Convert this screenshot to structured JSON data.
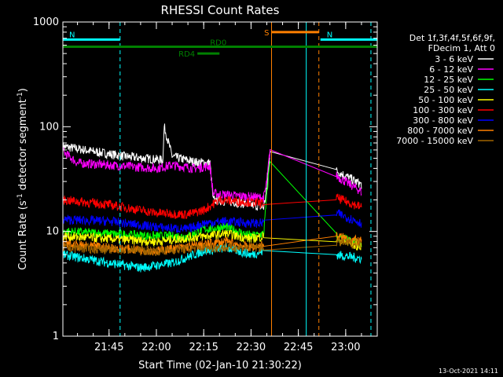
{
  "chart_data": {
    "type": "line",
    "title": "RHESSI Count Rates",
    "xlabel": "Start Time (02-Jan-10 21:30:22)",
    "ylabel_main": "Count Rate (s",
    "ylabel_sup1": "-1",
    "ylabel_mid": " detector segment",
    "ylabel_sup2": "-1",
    "ylabel_end": ")",
    "y_scale": "log",
    "xlim": [
      "21:30:22",
      "23:10:00"
    ],
    "ylim": [
      1,
      1000
    ],
    "x_ticks": [
      "21:45",
      "22:00",
      "22:15",
      "22:30",
      "22:45",
      "23:00"
    ],
    "y_ticks": [
      "1",
      "10",
      "100",
      "1000"
    ],
    "legend_position": "right",
    "legend_header": [
      "Det 1f,3f,4f,5f,6f,9f,",
      "FDecim 1, Att 0"
    ],
    "timestamp": "13-Oct-2021 14:11",
    "flags": [
      {
        "label": "N",
        "color": "#00ffff",
        "start": "21:30:22",
        "end": "21:48:30",
        "level": 680
      },
      {
        "label": "N",
        "color": "#00ffff",
        "start": "22:52:00",
        "end": "23:10:00",
        "level": 680
      },
      {
        "label": "S",
        "color": "#ff8000",
        "start": "22:36:30",
        "end": "22:51:30",
        "level": 800
      },
      {
        "label": "RD0",
        "color": "#008000",
        "start": "21:30:22",
        "end": "23:10:00",
        "level": 580
      },
      {
        "label": "RD4",
        "color": "#008000",
        "start": "22:13:00",
        "end": "22:20:00",
        "level": 500
      }
    ],
    "vertical_markers": [
      {
        "time": "21:48:30",
        "color": "#00ffff",
        "style": "dashed"
      },
      {
        "time": "22:36:30",
        "color": "#ff8000",
        "style": "solid"
      },
      {
        "time": "22:47:30",
        "color": "#00ffff",
        "style": "solid"
      },
      {
        "time": "22:51:30",
        "color": "#ff8000",
        "style": "dashed"
      },
      {
        "time": "23:08:00",
        "color": "#00ffff",
        "style": "dashed"
      }
    ],
    "series": [
      {
        "name": "3 - 6 keV",
        "color": "#ffffff",
        "points": [
          [
            "21:30:22",
            65
          ],
          [
            "21:40",
            58
          ],
          [
            "21:50",
            52
          ],
          [
            "22:02",
            48
          ],
          [
            "22:02:30",
            100
          ],
          [
            "22:05",
            52
          ],
          [
            "22:12",
            46
          ],
          [
            "22:17",
            45
          ],
          [
            "22:18",
            20
          ],
          [
            "22:25",
            19
          ],
          [
            "22:30",
            18
          ],
          [
            "22:34",
            17
          ],
          [
            "22:35",
            25
          ],
          [
            "22:36",
            60
          ],
          [
            "22:57",
            38
          ],
          [
            "23:05",
            28
          ]
        ]
      },
      {
        "name": "6 - 12 keV",
        "color": "#ff00ff",
        "points": [
          [
            "21:30:22",
            58
          ],
          [
            "21:35",
            45
          ],
          [
            "21:50",
            42
          ],
          [
            "22:00",
            40
          ],
          [
            "22:05",
            43
          ],
          [
            "22:12",
            40
          ],
          [
            "22:17",
            42
          ],
          [
            "22:18",
            23
          ],
          [
            "22:25",
            22
          ],
          [
            "22:34",
            21
          ],
          [
            "22:35",
            30
          ],
          [
            "22:36",
            60
          ],
          [
            "22:57",
            34
          ],
          [
            "23:05",
            24
          ]
        ]
      },
      {
        "name": "12 - 25 keV",
        "color": "#00ff00",
        "points": [
          [
            "21:30:22",
            10
          ],
          [
            "21:45",
            9.5
          ],
          [
            "22:00",
            9
          ],
          [
            "22:10",
            9
          ],
          [
            "22:15",
            10.5
          ],
          [
            "22:22",
            11
          ],
          [
            "22:30",
            9
          ],
          [
            "22:34",
            9.5
          ],
          [
            "22:36",
            50
          ],
          [
            "22:57",
            9
          ],
          [
            "23:05",
            7.5
          ]
        ]
      },
      {
        "name": "25 - 50 keV",
        "color": "#00ffff",
        "points": [
          [
            "21:30:22",
            6
          ],
          [
            "21:45",
            5
          ],
          [
            "21:55",
            4.5
          ],
          [
            "22:05",
            5
          ],
          [
            "22:15",
            6.5
          ],
          [
            "22:22",
            7
          ],
          [
            "22:30",
            6
          ],
          [
            "22:34",
            6.5
          ],
          [
            "22:57",
            6
          ],
          [
            "23:05",
            5.5
          ]
        ]
      },
      {
        "name": "50 - 100 keV",
        "color": "#ffff00",
        "points": [
          [
            "21:30:22",
            9
          ],
          [
            "21:45",
            8.5
          ],
          [
            "22:00",
            8
          ],
          [
            "22:15",
            9
          ],
          [
            "22:22",
            9.5
          ],
          [
            "22:30",
            8.5
          ],
          [
            "22:34",
            9
          ],
          [
            "22:57",
            8.5
          ],
          [
            "23:05",
            7
          ]
        ]
      },
      {
        "name": "100 - 300 keV",
        "color": "#ff0000",
        "points": [
          [
            "21:30:22",
            20
          ],
          [
            "21:45",
            18
          ],
          [
            "22:00",
            15
          ],
          [
            "22:10",
            14.5
          ],
          [
            "22:15",
            16
          ],
          [
            "22:20",
            20
          ],
          [
            "22:30",
            19
          ],
          [
            "22:34",
            18.5
          ],
          [
            "22:57",
            21
          ],
          [
            "23:05",
            17
          ]
        ]
      },
      {
        "name": "300 - 800 keV",
        "color": "#0000ff",
        "points": [
          [
            "21:30:22",
            13
          ],
          [
            "21:45",
            12.5
          ],
          [
            "22:00",
            11
          ],
          [
            "22:10",
            10.5
          ],
          [
            "22:15",
            12
          ],
          [
            "22:22",
            12.5
          ],
          [
            "22:30",
            12
          ],
          [
            "22:34",
            12
          ],
          [
            "22:57",
            15
          ],
          [
            "23:05",
            12
          ]
        ]
      },
      {
        "name": "800 - 7000 keV",
        "color": "#ff8000",
        "points": [
          [
            "21:30:22",
            7.5
          ],
          [
            "21:45",
            7
          ],
          [
            "22:00",
            6.5
          ],
          [
            "22:15",
            7.5
          ],
          [
            "22:22",
            8
          ],
          [
            "22:30",
            7
          ],
          [
            "22:34",
            7.5
          ],
          [
            "22:57",
            9
          ],
          [
            "23:05",
            8
          ]
        ]
      },
      {
        "name": "7000 - 15000 keV",
        "color": "#a06400",
        "points": [
          [
            "21:30:22",
            7
          ],
          [
            "22:00",
            6.5
          ],
          [
            "22:15",
            7
          ],
          [
            "22:34",
            7
          ],
          [
            "22:57",
            8
          ],
          [
            "23:05",
            7.5
          ]
        ]
      }
    ]
  }
}
